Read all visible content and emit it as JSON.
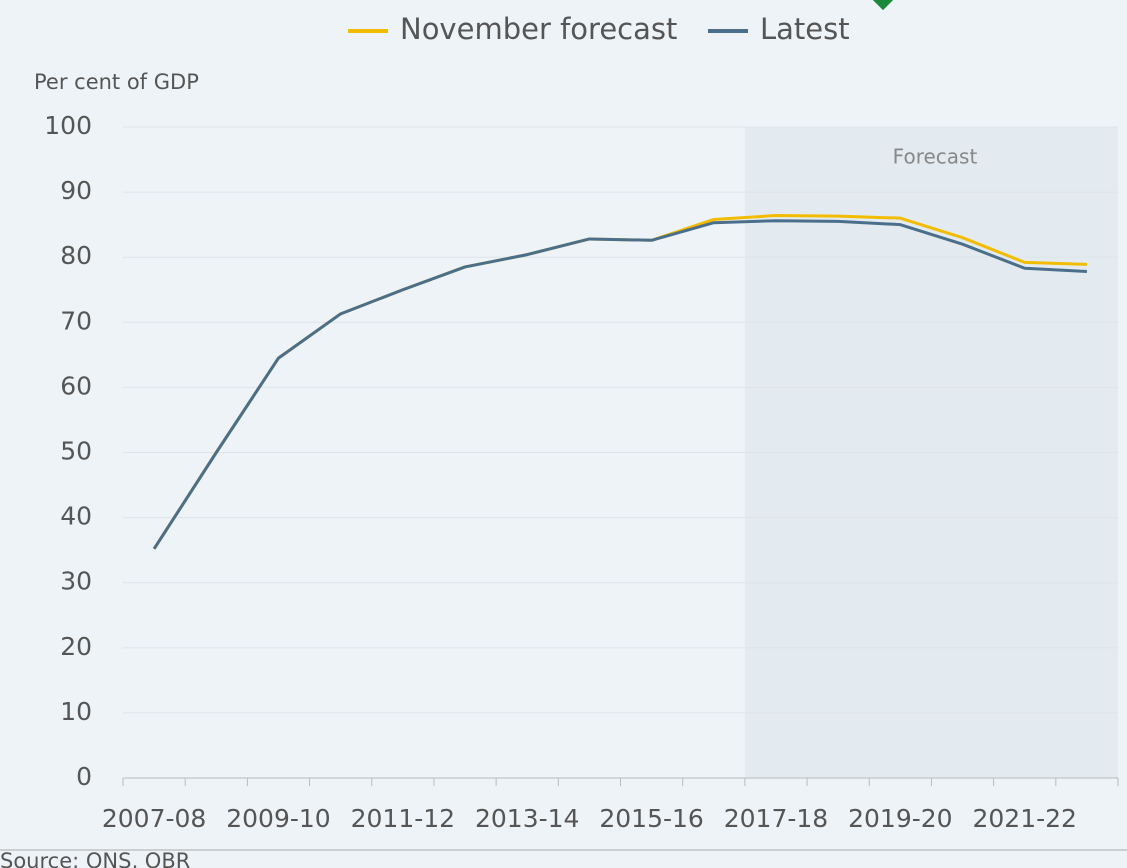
{
  "chart_data": {
    "type": "line",
    "y_label": "Per cent of GDP",
    "annotation": "Forecast",
    "source": "Source: ONS, OBR",
    "categories": [
      "2007-08",
      null,
      "2009-10",
      null,
      "2011-12",
      null,
      "2013-14",
      null,
      "2015-16",
      null,
      "2017-18",
      null,
      "2019-20",
      null,
      "2021-22",
      null
    ],
    "series": [
      {
        "name": "November forecast",
        "color": "#f2bd00",
        "values": [
          35.2,
          50.0,
          64.5,
          71.3,
          75.0,
          78.5,
          80.4,
          82.8,
          82.6,
          85.8,
          86.4,
          86.3,
          86.0,
          83.0,
          79.2,
          78.9
        ]
      },
      {
        "name": "Latest",
        "color": "#4b6f8b",
        "values": [
          35.2,
          50.0,
          64.5,
          71.3,
          75.0,
          78.5,
          80.4,
          82.8,
          82.6,
          85.3,
          85.6,
          85.5,
          85.0,
          82.0,
          78.3,
          77.8
        ]
      }
    ],
    "ylim": [
      0,
      100
    ],
    "yticks": [
      0,
      10,
      20,
      30,
      40,
      50,
      60,
      70,
      80,
      90,
      100
    ],
    "grid": true,
    "legend": "top"
  }
}
